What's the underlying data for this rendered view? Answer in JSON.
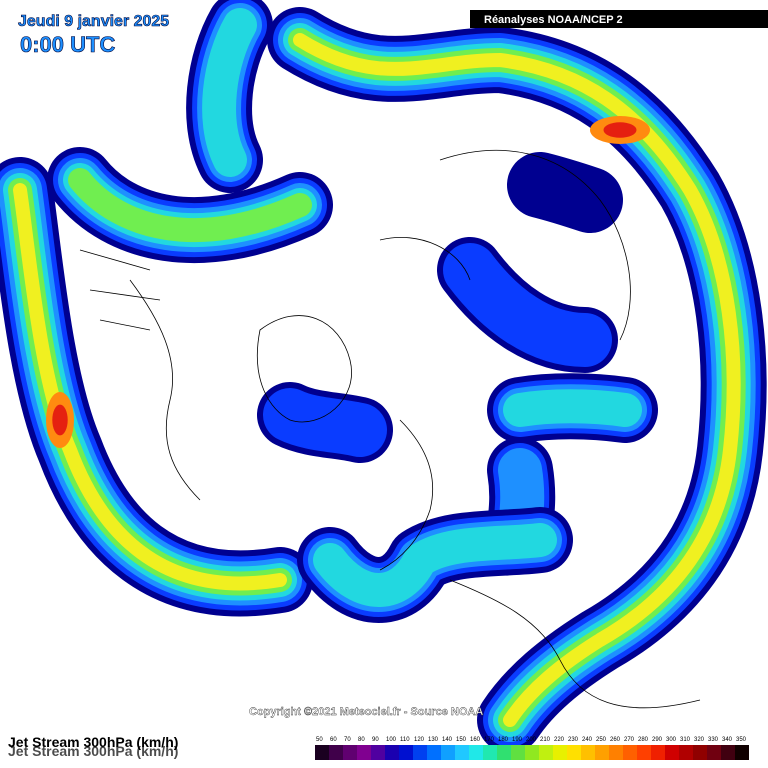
{
  "header": {
    "date": "Jeudi 9 janvier 2025",
    "time": "0:00 UTC",
    "source": "Réanalyses NOAA/NCEP 2"
  },
  "footer": {
    "copyright": "Copyright ©2021 Meteociel.fr - Source NOAA",
    "title": "Jet Stream 300hPa (km/h)"
  },
  "legend": {
    "labels": [
      50,
      60,
      70,
      80,
      90,
      100,
      110,
      120,
      130,
      140,
      150,
      160,
      170,
      180,
      190,
      200,
      210,
      220,
      230,
      240,
      250,
      260,
      270,
      280,
      290,
      300,
      310,
      320,
      330,
      340,
      350
    ]
  }
}
